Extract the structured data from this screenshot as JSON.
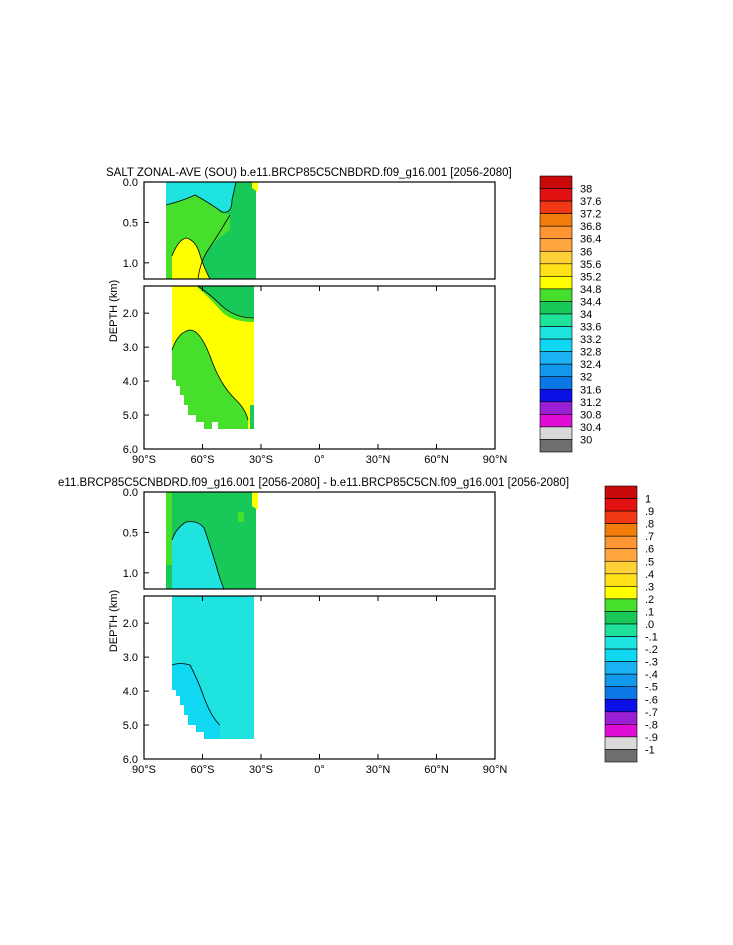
{
  "colors": {
    "salt_levels": [
      "#6e6e6e",
      "#d9d9d9",
      "#e00ed5",
      "#9b1fd4",
      "#0a10e6",
      "#0b78e6",
      "#1298ea",
      "#1ab2f2",
      "#10d7f2",
      "#1fe3df",
      "#1ee29a",
      "#18c95a",
      "#46e02c",
      "#ffff00",
      "#ffe11a",
      "#ffd038",
      "#ffa63e",
      "#ff9633",
      "#f27d0b",
      "#f03814",
      "#e31212",
      "#c90a0a"
    ],
    "diff_levels": [
      "#6e6e6e",
      "#d9d9d9",
      "#e00ed5",
      "#9b1fd4",
      "#0a10e6",
      "#0b78e6",
      "#1298ea",
      "#1ab2f2",
      "#10d7f2",
      "#1fe3df",
      "#1ee29a",
      "#18c95a",
      "#46e02c",
      "#ffff00",
      "#ffe11a",
      "#ffd038",
      "#ffa63e",
      "#ff9633",
      "#f27d0b",
      "#f03814",
      "#e31212",
      "#c90a0a"
    ]
  },
  "chart_data": [
    {
      "type": "heatmap",
      "title": "SALT ZONAL-AVE (SOU) b.e11.BRCP85C5CNBDRD.f09_g16.001 [2056-2080]",
      "ylabel": "DEPTH (km)",
      "xlabel": "",
      "xlim": [
        -90,
        90
      ],
      "ylim": [
        6.0,
        0.0
      ],
      "y_break_km": 1.2,
      "x_ticks": [
        "90°S",
        "60°S",
        "30°S",
        "0°",
        "30°N",
        "60°N",
        "90°N"
      ],
      "y_ticks_upper": [
        "0.0",
        "0.5",
        "1.0"
      ],
      "y_ticks_lower": [
        "2.0",
        "3.0",
        "4.0",
        "5.0",
        "6.0"
      ],
      "colorbar_labels": [
        "38",
        "37.6",
        "37.2",
        "36.8",
        "36.4",
        "36",
        "35.6",
        "35.2",
        "34.8",
        "34.4",
        "34",
        "33.6",
        "33.2",
        "32.8",
        "32.4",
        "32",
        "31.6",
        "31.2",
        "30.8",
        "30.4",
        "30"
      ],
      "data_lat_range": [
        -78,
        -34
      ],
      "dominant_values": {
        "surface_shelf": 33.8,
        "intermediate_north": 34.2,
        "deep": 34.8,
        "abyssal_south": 34.6
      }
    },
    {
      "type": "heatmap",
      "title": "e11.BRCP85C5CNBDRD.f09_g16.001 [2056-2080] - b.e11.BRCP85C5CN.f09_g16.001 [2056-2080]",
      "ylabel": "DEPTH (km)",
      "xlabel": "",
      "xlim": [
        -90,
        90
      ],
      "ylim": [
        6.0,
        0.0
      ],
      "y_break_km": 1.2,
      "x_ticks": [
        "90°S",
        "60°S",
        "30°S",
        "0°",
        "30°N",
        "60°N",
        "90°N"
      ],
      "y_ticks_upper": [
        "0.0",
        "0.5",
        "1.0"
      ],
      "y_ticks_lower": [
        "2.0",
        "3.0",
        "4.0",
        "5.0",
        "6.0"
      ],
      "colorbar_labels": [
        "1",
        ".9",
        ".8",
        ".7",
        ".6",
        ".5",
        ".4",
        ".3",
        ".2",
        ".1",
        ".0",
        "-.1",
        "-.2",
        "-.3",
        "-.4",
        "-.5",
        "-.6",
        "-.7",
        "-.8",
        "-.9",
        "-1"
      ],
      "data_lat_range": [
        -78,
        -34
      ],
      "dominant_values": {
        "upper_north": 0.05,
        "interior": -0.05,
        "abyssal_south": -0.15
      }
    }
  ]
}
